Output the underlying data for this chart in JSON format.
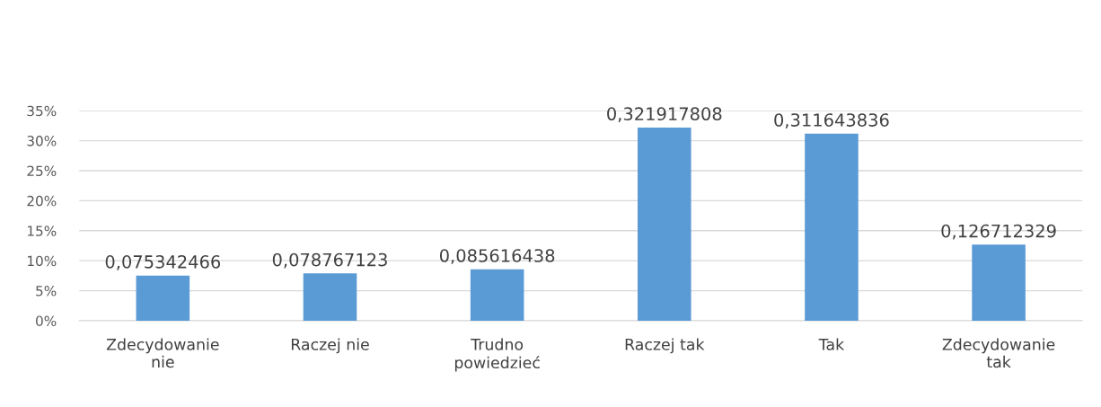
{
  "chart_data": {
    "type": "bar",
    "categories": [
      "Zdecydowanie nie",
      "Raczej nie",
      "Trudno powiedzieć",
      "Raczej tak",
      "Tak",
      "Zdecydowanie tak"
    ],
    "values": [
      0.075342466,
      0.078767123,
      0.085616438,
      0.321917808,
      0.311643836,
      0.126712329
    ],
    "value_labels": [
      "0,075342466",
      "0,078767123",
      "0,085616438",
      "0,321917808",
      "0,311643836",
      "0,126712329"
    ],
    "color": "#5b9bd5",
    "ylim": [
      0,
      0.35
    ],
    "yticks": [
      {
        "value": 0,
        "label": "0%"
      },
      {
        "value": 0.05,
        "label": "5%"
      },
      {
        "value": 0.1,
        "label": "10%"
      },
      {
        "value": 0.15,
        "label": "15%"
      },
      {
        "value": 0.2,
        "label": "20%"
      },
      {
        "value": 0.25,
        "label": "25%"
      },
      {
        "value": 0.3,
        "label": "30%"
      },
      {
        "value": 0.35,
        "label": "35%"
      }
    ],
    "grid": "y",
    "legend": false
  }
}
